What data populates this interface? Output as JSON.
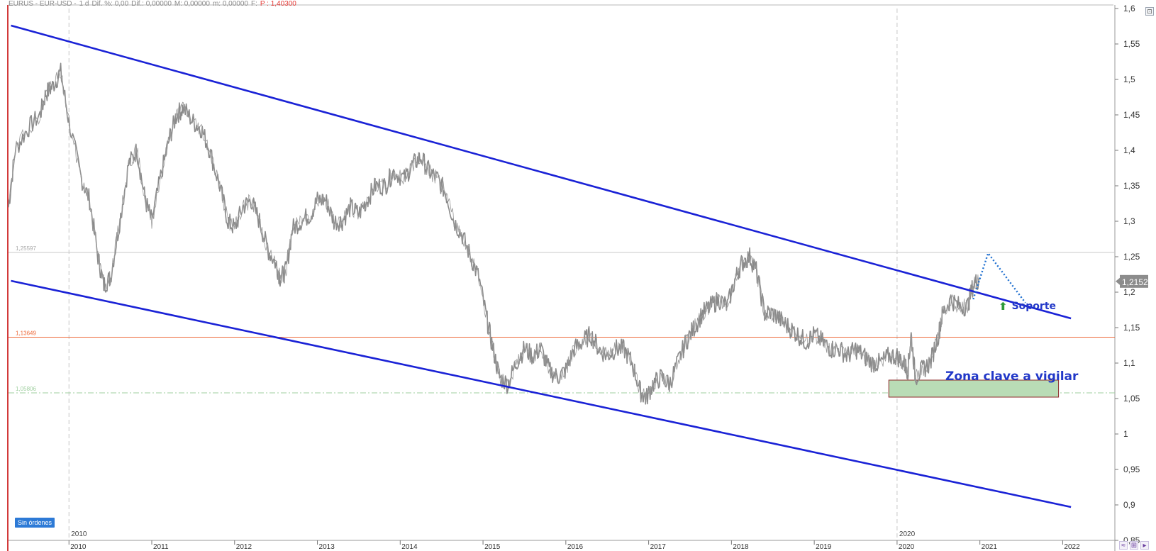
{
  "header": {
    "symbol": "EURUS - EUR-USD -",
    "timeframe": "1 d",
    "dif_pct": "Dif. %: 0,00",
    "dif": "Dif.: 0,00000",
    "max": "M: 0,00000",
    "min": "m: 0,00000",
    "f": "F:",
    "last": "P : 1,40300"
  },
  "chart_data": {
    "type": "line",
    "title": "",
    "instrument": "EUR-USD",
    "xlabel": "",
    "ylabel": "",
    "x_range": [
      2009.27,
      2022.63
    ],
    "ylim": [
      0.85,
      1.6
    ],
    "y_ticks": [
      "1,6",
      "1,55",
      "1,5",
      "1,45",
      "1,4",
      "1,35",
      "1,3",
      "1,25",
      "1,2",
      "1,15",
      "1,1",
      "1,05",
      "1",
      "0,95",
      "0,9",
      "0,85"
    ],
    "x_ticks": [
      "2010",
      "2011",
      "2012",
      "2013",
      "2014",
      "2015",
      "2016",
      "2017",
      "2018",
      "2019",
      "2020",
      "2021",
      "2022"
    ],
    "x_period_markers": [
      "2010",
      "2020"
    ],
    "price_series": {
      "x": [
        2009.27,
        2009.35,
        2009.5,
        2009.65,
        2009.72,
        2009.8,
        2009.9,
        2010.0,
        2010.15,
        2010.25,
        2010.35,
        2010.42,
        2010.5,
        2010.6,
        2010.72,
        2010.82,
        2010.92,
        2011.0,
        2011.12,
        2011.22,
        2011.3,
        2011.38,
        2011.5,
        2011.6,
        2011.7,
        2011.82,
        2011.92,
        2012.0,
        2012.1,
        2012.2,
        2012.3,
        2012.4,
        2012.5,
        2012.55,
        2012.62,
        2012.7,
        2012.8,
        2012.92,
        2013.0,
        2013.1,
        2013.2,
        2013.3,
        2013.4,
        2013.5,
        2013.6,
        2013.7,
        2013.82,
        2013.92,
        2014.05,
        2014.15,
        2014.25,
        2014.35,
        2014.45,
        2014.55,
        2014.65,
        2014.75,
        2014.85,
        2014.95,
        2015.05,
        2015.12,
        2015.2,
        2015.3,
        2015.4,
        2015.5,
        2015.6,
        2015.7,
        2015.8,
        2015.9,
        2016.0,
        2016.1,
        2016.2,
        2016.3,
        2016.4,
        2016.5,
        2016.6,
        2016.7,
        2016.8,
        2016.9,
        2016.97,
        2017.05,
        2017.15,
        2017.25,
        2017.35,
        2017.45,
        2017.55,
        2017.65,
        2017.75,
        2017.85,
        2017.95,
        2018.05,
        2018.12,
        2018.22,
        2018.3,
        2018.4,
        2018.5,
        2018.6,
        2018.7,
        2018.8,
        2018.9,
        2019.0,
        2019.1,
        2019.2,
        2019.3,
        2019.4,
        2019.5,
        2019.6,
        2019.7,
        2019.8,
        2019.9,
        2020.0,
        2020.08,
        2020.13,
        2020.17,
        2020.22,
        2020.3,
        2020.4,
        2020.5,
        2020.55,
        2020.65,
        2020.75,
        2020.85,
        2020.92,
        2021.0
      ],
      "y": [
        1.32,
        1.4,
        1.43,
        1.45,
        1.48,
        1.49,
        1.51,
        1.44,
        1.36,
        1.33,
        1.25,
        1.21,
        1.22,
        1.29,
        1.38,
        1.4,
        1.33,
        1.3,
        1.37,
        1.42,
        1.45,
        1.46,
        1.44,
        1.43,
        1.4,
        1.35,
        1.3,
        1.29,
        1.32,
        1.33,
        1.3,
        1.26,
        1.24,
        1.22,
        1.23,
        1.29,
        1.3,
        1.31,
        1.33,
        1.33,
        1.3,
        1.3,
        1.32,
        1.31,
        1.33,
        1.35,
        1.35,
        1.37,
        1.36,
        1.38,
        1.39,
        1.37,
        1.36,
        1.34,
        1.3,
        1.28,
        1.25,
        1.22,
        1.16,
        1.12,
        1.08,
        1.07,
        1.1,
        1.12,
        1.11,
        1.12,
        1.09,
        1.08,
        1.09,
        1.12,
        1.13,
        1.14,
        1.12,
        1.11,
        1.12,
        1.12,
        1.1,
        1.06,
        1.05,
        1.07,
        1.08,
        1.07,
        1.1,
        1.13,
        1.15,
        1.17,
        1.18,
        1.19,
        1.18,
        1.22,
        1.24,
        1.25,
        1.23,
        1.17,
        1.17,
        1.16,
        1.15,
        1.14,
        1.13,
        1.14,
        1.13,
        1.12,
        1.12,
        1.11,
        1.12,
        1.11,
        1.1,
        1.1,
        1.11,
        1.11,
        1.1,
        1.09,
        1.14,
        1.08,
        1.09,
        1.1,
        1.14,
        1.17,
        1.19,
        1.18,
        1.18,
        1.21,
        1.22
      ]
    },
    "current_price_label": "1,2152",
    "horizontal_levels": [
      {
        "value": 1.25597,
        "label": "1,25597",
        "color": "#c8c8c8",
        "style": "solid"
      },
      {
        "value": 1.13649,
        "label": "1,13649",
        "color": "#ee6a3a",
        "style": "solid"
      },
      {
        "value": 1.05806,
        "label": "1,05806",
        "color": "#9fcf9f",
        "style": "dash-dot"
      }
    ],
    "channel_lines": [
      {
        "x1": 2009.3,
        "y1": 1.576,
        "x2": 2022.1,
        "y2": 1.163,
        "color": "#1a22d6"
      },
      {
        "x1": 2009.3,
        "y1": 1.216,
        "x2": 2022.1,
        "y2": 0.897,
        "color": "#1a22d6"
      }
    ],
    "projection_line": {
      "points": [
        [
          2020.92,
          1.19
        ],
        [
          2021.1,
          1.255
        ],
        [
          2021.55,
          1.185
        ]
      ],
      "color": "#1e6fd0",
      "style": "dotted"
    },
    "key_zone": {
      "x1": 2019.9,
      "x2": 2021.95,
      "y1": 1.052,
      "y2": 1.076,
      "fill": "#b9dcb6",
      "stroke": "#8e2a2a"
    },
    "annotations": [
      {
        "text": "Soporte",
        "x": 2021.4,
        "y": 1.128
      },
      {
        "text": "Zona clave a vigilar",
        "x": 2020.5,
        "y": 1.04
      }
    ],
    "grid": false,
    "legend": "none"
  },
  "overlays": {
    "soporte_arrow": "⬆",
    "soporte_text": "Soporte",
    "zona_text": "Zona clave a vigilar",
    "sin_ordenes": "Sin órdenes"
  },
  "icons": {
    "corner": "expand-icon",
    "bottom": [
      "wave-icon",
      "crosshair-icon",
      "arrow-right-icon"
    ]
  },
  "colors": {
    "channel": "#1a22d6",
    "price": "#8a8a8a",
    "support_line": "#ee6a3a",
    "key_zone": "#b9dcb6",
    "annotation_text": "#2238c8",
    "support_arrow": "#2e9a3a",
    "price_badge": "#8c8c8c"
  }
}
